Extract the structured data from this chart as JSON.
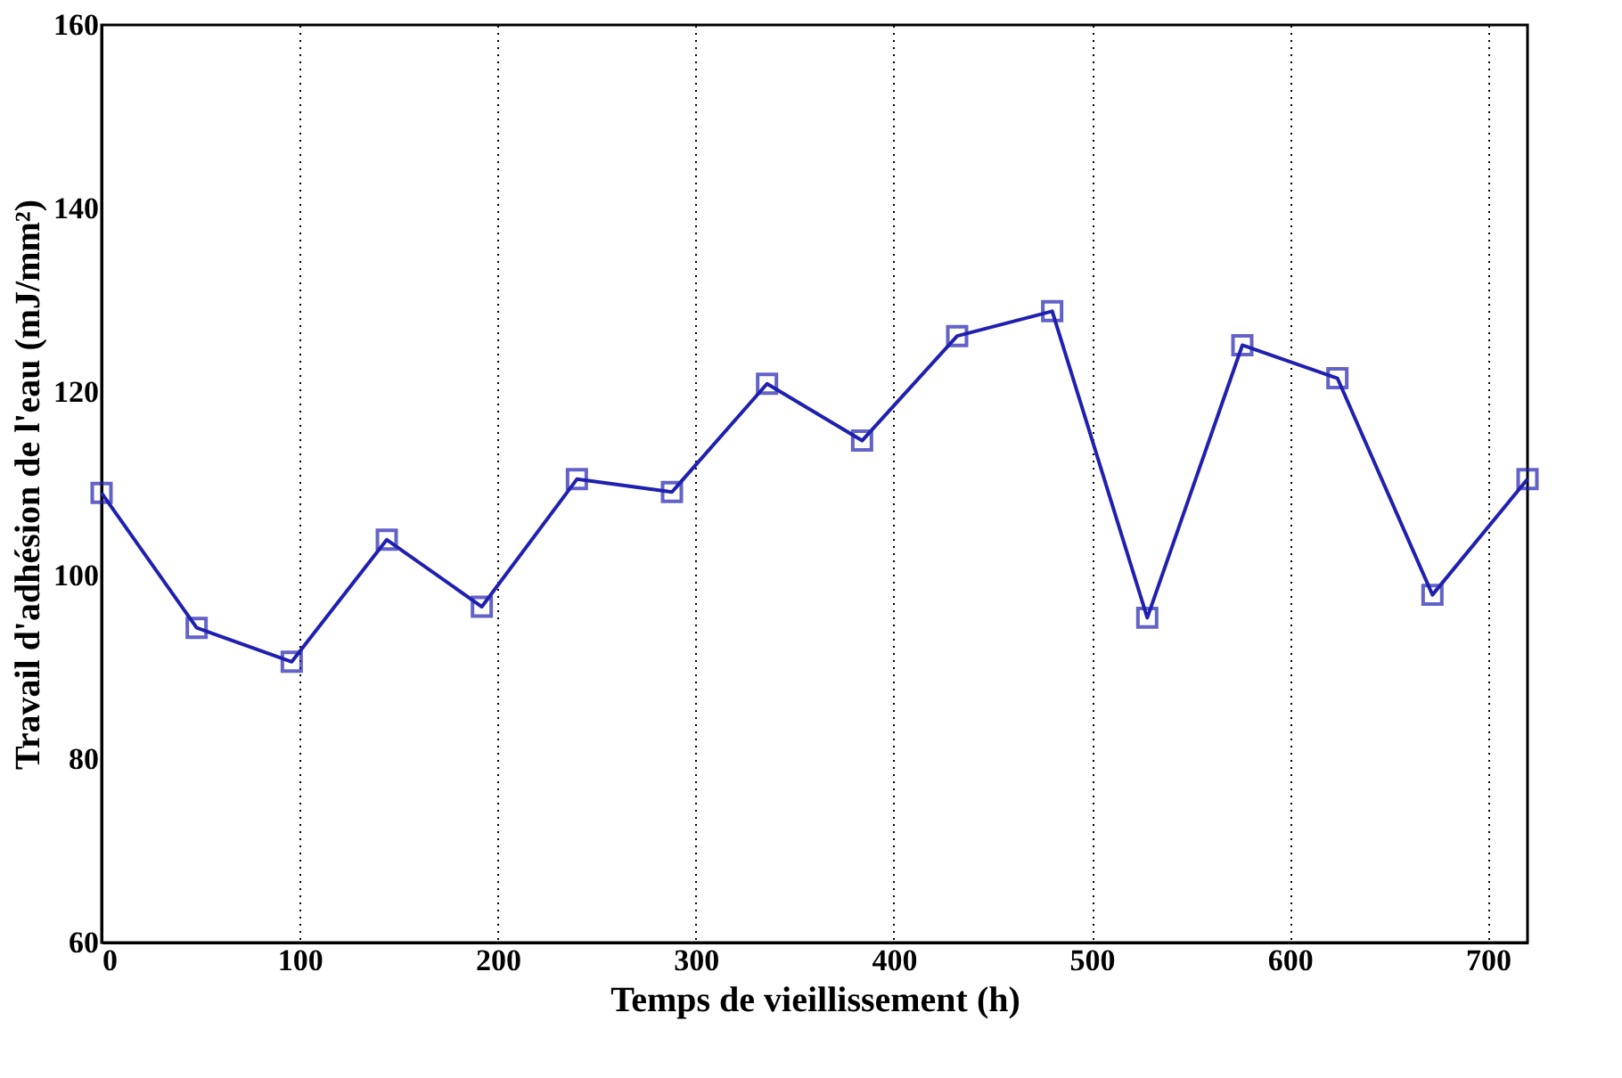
{
  "chart_data": {
    "type": "line",
    "xlabel": "Temps de vieillissement (h)",
    "ylabel": "Travail d'adhésion de l'eau (mJ/mm²)",
    "x": [
      0,
      48,
      96,
      144,
      192,
      240,
      288,
      336,
      384,
      432,
      480,
      528,
      576,
      624,
      672,
      720
    ],
    "series": [
      {
        "color": "#2020b0",
        "values": [
          109,
          94.3,
          90.6,
          103.9,
          96.6,
          110.5,
          109.1,
          120.9,
          114.7,
          126.1,
          128.8,
          95.4,
          125.1,
          121.5,
          97.9,
          110.5
        ]
      }
    ],
    "xlim": [
      0,
      720
    ],
    "xticks": [
      0,
      100,
      200,
      300,
      400,
      500,
      600,
      700
    ],
    "ylim": [
      60,
      160
    ],
    "yticks": [
      60,
      80,
      100,
      120,
      140,
      160
    ],
    "grid": "x",
    "marker": "square",
    "line_style": "solid"
  }
}
